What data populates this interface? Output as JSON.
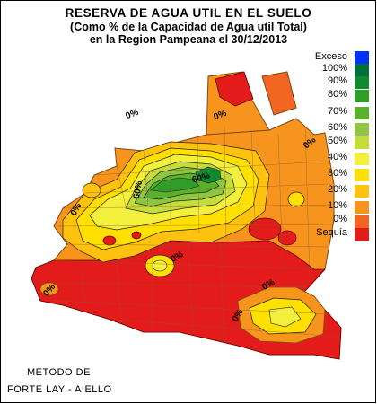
{
  "title": {
    "line1": "RESERVA DE AGUA UTIL EN EL SUELO",
    "line2": "(Como % de la Capacidad de Agua util Total)",
    "line3": "en la Region Pampeana el 30/12/2013"
  },
  "legend": [
    {
      "label": "Exceso",
      "color": "#0033ff"
    },
    {
      "label": "100%",
      "color": "#00703a"
    },
    {
      "label": "90%",
      "color": "#0f8a2e"
    },
    {
      "label": "80%",
      "color": "#2f9f2a"
    },
    {
      "label": "70%",
      "color": "#58b22a"
    },
    {
      "label": "60%",
      "color": "#8ec63f"
    },
    {
      "label": "50%",
      "color": "#c5dd3b"
    },
    {
      "label": "40%",
      "color": "#f2f03c"
    },
    {
      "label": "30%",
      "color": "#ffe000"
    },
    {
      "label": "20%",
      "color": "#ffc20e"
    },
    {
      "label": "10%",
      "color": "#f7941d"
    },
    {
      "label": "0%",
      "color": "#f26522"
    },
    {
      "label": "Sequía",
      "color": "#e41b1b"
    }
  ],
  "contour_labels": [
    "0%",
    "0%",
    "0%",
    "0%",
    "0%",
    "0%",
    "0%",
    "0%",
    "60%",
    "60%"
  ],
  "method": {
    "line1": "METODO DE",
    "line2": "FORTE LAY - AIELLO"
  }
}
